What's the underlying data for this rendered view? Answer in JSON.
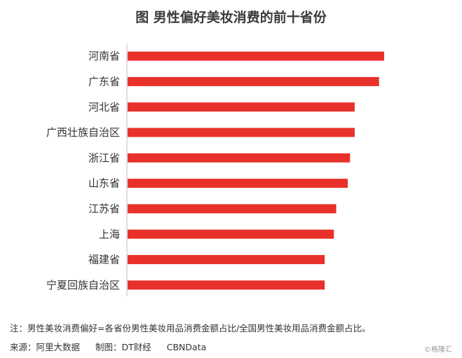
{
  "chart_data": {
    "type": "bar",
    "orientation": "horizontal",
    "title": "图 男性偏好美妆消费的前十省份",
    "categories": [
      "河南省",
      "广东省",
      "河北省",
      "广西壮族自治区",
      "浙江省",
      "山东省",
      "江苏省",
      "上海",
      "福建省",
      "宁夏回族自治区"
    ],
    "values": [
      100,
      98,
      88.5,
      88.5,
      86.7,
      85.8,
      81.3,
      80.4,
      76.8,
      76.8
    ],
    "xlim": [
      0,
      100
    ],
    "grid": false,
    "bar_color": "#e8312a"
  },
  "footer": {
    "note": "注：男性美妆消费偏好=各省份男性美妆用品消费金额占比/全国男性美妆用品消费金额占比。",
    "source": "来源：阿里大数据",
    "maker": "制图：DT财经",
    "brand": "CBNData",
    "watermark": "©格隆汇"
  }
}
